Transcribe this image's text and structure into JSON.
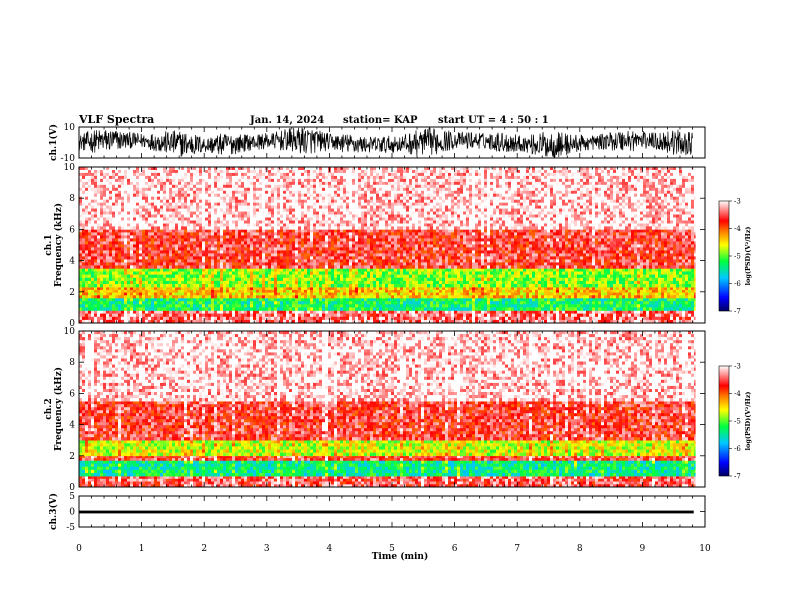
{
  "header": {
    "title": "VLF Spectra",
    "date": "Jan. 14, 2024",
    "station": "station= KAP",
    "start": "start  UT  =   4 : 50 : 1"
  },
  "chart_data": [
    {
      "type": "line",
      "panel": "ch1-waveform",
      "ylabel": "ch.1(V)",
      "ylim": [
        -10,
        10
      ],
      "yticks": [
        "10",
        "-10"
      ],
      "xlim": [
        0,
        10
      ],
      "description_values": {
        "typical_swing_min": -8,
        "typical_swing_max": 9
      }
    },
    {
      "type": "heatmap",
      "panel": "ch1-spectrogram",
      "ylabel": "ch.1\nFrequency (kHz)",
      "ylim": [
        0,
        10
      ],
      "yticks": [
        "0",
        "2",
        "4",
        "6",
        "8",
        "10"
      ],
      "xlim": [
        0,
        10
      ],
      "bands": [
        {
          "f_low": 0,
          "f_high": 0.8,
          "log_psd": -3.4
        },
        {
          "f_low": 0.8,
          "f_high": 1.6,
          "log_psd": -5.3
        },
        {
          "f_low": 1.6,
          "f_high": 2.3,
          "log_psd": -4.4
        },
        {
          "f_low": 2.3,
          "f_high": 3.5,
          "log_psd": -4.9
        },
        {
          "f_low": 3.5,
          "f_high": 6,
          "log_psd": -3.6
        },
        {
          "f_low": 6,
          "f_high": 10,
          "log_psd": -3.1
        }
      ],
      "colorbar": {
        "label": "log(PSD)(V²/Hz)",
        "range": [
          -7,
          -3
        ],
        "ticks": [
          "-3",
          "-4",
          "-5",
          "-6",
          "-7"
        ]
      }
    },
    {
      "type": "heatmap",
      "panel": "ch2-spectrogram",
      "ylabel": "ch.2\nFrequency (kHz)",
      "ylim": [
        0,
        10
      ],
      "yticks": [
        "0",
        "2",
        "4",
        "6",
        "8",
        "10"
      ],
      "xlim": [
        0,
        10
      ],
      "bands": [
        {
          "f_low": 0,
          "f_high": 0.7,
          "log_psd": -3.5
        },
        {
          "f_low": 0.7,
          "f_high": 1.7,
          "log_psd": -5.4
        },
        {
          "f_low": 1.7,
          "f_high": 2.0,
          "log_psd": -3.6
        },
        {
          "f_low": 2.0,
          "f_high": 3.0,
          "log_psd": -4.7
        },
        {
          "f_low": 3.0,
          "f_high": 5.5,
          "log_psd": -3.6
        },
        {
          "f_low": 5.5,
          "f_high": 10,
          "log_psd": -3.1
        }
      ],
      "colorbar": {
        "label": "log(PSD)(V²/Hz)",
        "range": [
          -7,
          -3
        ],
        "ticks": [
          "-3",
          "-4",
          "-5",
          "-6",
          "-7"
        ]
      }
    },
    {
      "type": "line",
      "panel": "ch3-waveform",
      "ylabel": "ch.3(V)",
      "ylim": [
        -5,
        5
      ],
      "yticks": [
        "5",
        "0",
        "-5"
      ],
      "xlim": [
        0,
        10
      ],
      "description_values": {
        "level_min": -0.6,
        "level_max": 0.3
      }
    }
  ],
  "xaxis": {
    "label": "Time  (min)",
    "ticks": [
      "0",
      "1",
      "2",
      "3",
      "4",
      "5",
      "6",
      "7",
      "8",
      "9",
      "10"
    ]
  },
  "colors": {
    "frame": "#000000",
    "cmap": [
      "#000080",
      "#0000ff",
      "#00c0ff",
      "#00ff00",
      "#ffff00",
      "#ff8000",
      "#ff0000",
      "#ffffff"
    ]
  }
}
